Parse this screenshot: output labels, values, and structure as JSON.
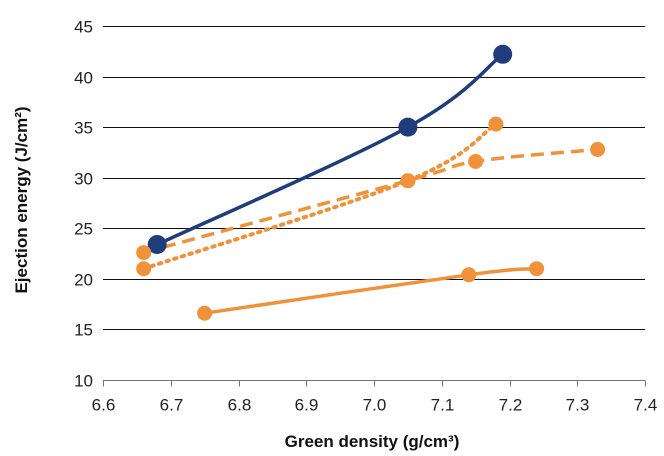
{
  "chart_data": {
    "type": "line",
    "xlabel": "Green density (g/cm³)",
    "ylabel": "Ejection energy (J/cm²)",
    "xlim": [
      6.6,
      7.4
    ],
    "ylim": [
      10,
      45
    ],
    "x_ticks": [
      "6.6",
      "6.7",
      "6.8",
      "6.9",
      "7.0",
      "7.1",
      "7.2",
      "7.3",
      "7.4"
    ],
    "y_ticks": [
      "10",
      "15",
      "20",
      "25",
      "30",
      "35",
      "40",
      "45"
    ],
    "grid": "horizontal",
    "legend": "none",
    "series": [
      {
        "color": "#1f3d7a",
        "style": "solid",
        "marker": "large-circle",
        "points": [
          {
            "x": 6.68,
            "y": 23.4
          },
          {
            "x": 7.05,
            "y": 35.0
          },
          {
            "x": 7.19,
            "y": 42.2
          }
        ]
      },
      {
        "color": "#f0923a",
        "style": "dashed",
        "marker": "circle",
        "points": [
          {
            "x": 6.66,
            "y": 22.6
          },
          {
            "x": 7.05,
            "y": 29.7
          },
          {
            "x": 7.15,
            "y": 31.6
          },
          {
            "x": 7.33,
            "y": 32.8
          }
        ]
      },
      {
        "color": "#f0923a",
        "style": "dotted",
        "marker": "circle",
        "points": [
          {
            "x": 6.66,
            "y": 21.0
          },
          {
            "x": 7.05,
            "y": 29.7
          },
          {
            "x": 7.18,
            "y": 35.3
          }
        ]
      },
      {
        "color": "#f0923a",
        "style": "solid",
        "marker": "circle",
        "points": [
          {
            "x": 6.75,
            "y": 16.6
          },
          {
            "x": 7.14,
            "y": 20.4
          },
          {
            "x": 7.24,
            "y": 21.0
          }
        ]
      }
    ]
  }
}
